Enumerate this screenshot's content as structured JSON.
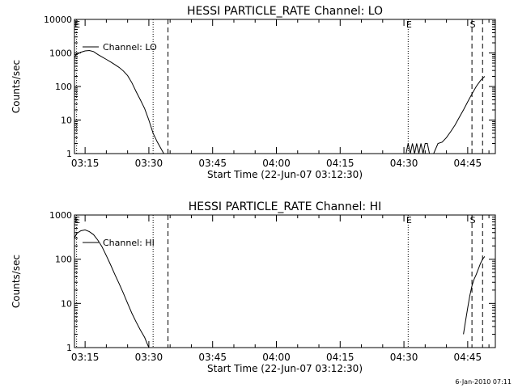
{
  "footer_stamp": "6-Jan-2010 07:11",
  "chart_data": [
    {
      "type": "line",
      "title": "HESSI PARTICLE_RATE Channel: LO",
      "xlabel": "Start Time (22-Jun-07 03:12:30)",
      "ylabel": "Counts/sec",
      "y_scale": "log",
      "ylim": [
        1,
        10000
      ],
      "y_ticks": [
        {
          "v": 1,
          "label": "1"
        },
        {
          "v": 10,
          "label": "10"
        },
        {
          "v": 100,
          "label": "100"
        },
        {
          "v": 1000,
          "label": "1000"
        },
        {
          "v": 10000,
          "label": "10000"
        }
      ],
      "xlim": [
        "03:12:30",
        "04:51:30"
      ],
      "x_ticks": [
        "03:15",
        "03:30",
        "03:45",
        "04:00",
        "04:15",
        "04:30",
        "04:45"
      ],
      "grid": false,
      "legend": {
        "entries": [
          "Channel: LO"
        ],
        "placement": "top-left"
      },
      "markers": [
        {
          "time": "03:13:00",
          "style": "dotted",
          "label": "E"
        },
        {
          "time": "03:31:00",
          "style": "dotted",
          "label": ""
        },
        {
          "time": "03:34:30",
          "style": "dashed",
          "label": ""
        },
        {
          "time": "04:31:00",
          "style": "dotted",
          "label": "E"
        },
        {
          "time": "04:46:00",
          "style": "dashed",
          "label": "S"
        },
        {
          "time": "04:48:30",
          "style": "dashed",
          "label": ""
        }
      ],
      "series": [
        {
          "name": "Channel: LO",
          "segments": [
            [
              [
                "03:12:30",
                750
              ],
              [
                "03:13:00",
                900
              ],
              [
                "03:14:00",
                1050
              ],
              [
                "03:15:00",
                1150
              ],
              [
                "03:16:00",
                1180
              ],
              [
                "03:17:00",
                1100
              ],
              [
                "03:18:00",
                900
              ],
              [
                "03:19:00",
                760
              ],
              [
                "03:20:00",
                640
              ],
              [
                "03:21:00",
                540
              ],
              [
                "03:22:00",
                450
              ],
              [
                "03:23:00",
                370
              ],
              [
                "03:24:00",
                290
              ],
              [
                "03:25:00",
                210
              ],
              [
                "03:26:00",
                130
              ],
              [
                "03:27:00",
                70
              ],
              [
                "03:28:00",
                40
              ],
              [
                "03:29:00",
                22
              ],
              [
                "03:30:00",
                10
              ],
              [
                "03:31:00",
                4
              ],
              [
                "03:32:00",
                2.2
              ],
              [
                "03:33:00",
                1.3
              ],
              [
                "03:33:30",
                1
              ]
            ],
            [
              [
                "04:30:30",
                1
              ],
              [
                "04:31:00",
                2
              ],
              [
                "04:31:30",
                1
              ],
              [
                "04:32:00",
                2
              ],
              [
                "04:32:30",
                1
              ],
              [
                "04:33:00",
                2
              ],
              [
                "04:33:30",
                1
              ],
              [
                "04:34:00",
                2
              ],
              [
                "04:34:30",
                1
              ],
              [
                "04:35:00",
                2
              ],
              [
                "04:35:30",
                2
              ],
              [
                "04:36:00",
                1
              ]
            ],
            [
              [
                "04:37:00",
                1
              ],
              [
                "04:38:00",
                2
              ],
              [
                "04:39:00",
                2.2
              ],
              [
                "04:40:00",
                3
              ],
              [
                "04:41:00",
                4.5
              ],
              [
                "04:42:00",
                7
              ],
              [
                "04:43:00",
                12
              ],
              [
                "04:44:00",
                20
              ],
              [
                "04:45:00",
                35
              ],
              [
                "04:46:00",
                60
              ],
              [
                "04:47:00",
                100
              ],
              [
                "04:48:00",
                150
              ],
              [
                "04:49:00",
                200
              ]
            ]
          ]
        }
      ]
    },
    {
      "type": "line",
      "title": "HESSI PARTICLE_RATE Channel: HI",
      "xlabel": "Start Time (22-Jun-07 03:12:30)",
      "ylabel": "Counts/sec",
      "y_scale": "log",
      "ylim": [
        1,
        1000
      ],
      "y_ticks": [
        {
          "v": 1,
          "label": "1"
        },
        {
          "v": 10,
          "label": "10"
        },
        {
          "v": 100,
          "label": "100"
        },
        {
          "v": 1000,
          "label": "1000"
        }
      ],
      "xlim": [
        "03:12:30",
        "04:51:30"
      ],
      "x_ticks": [
        "03:15",
        "03:30",
        "03:45",
        "04:00",
        "04:15",
        "04:30",
        "04:45"
      ],
      "grid": false,
      "legend": {
        "entries": [
          "Channel: HI"
        ],
        "placement": "top-left"
      },
      "markers": [
        {
          "time": "03:13:00",
          "style": "dotted",
          "label": "E"
        },
        {
          "time": "03:31:00",
          "style": "dotted",
          "label": ""
        },
        {
          "time": "03:34:30",
          "style": "dashed",
          "label": ""
        },
        {
          "time": "04:31:00",
          "style": "dotted",
          "label": "E"
        },
        {
          "time": "04:46:00",
          "style": "dashed",
          "label": "S"
        },
        {
          "time": "04:48:30",
          "style": "dashed",
          "label": ""
        }
      ],
      "series": [
        {
          "name": "Channel: HI",
          "segments": [
            [
              [
                "03:12:30",
                300
              ],
              [
                "03:13:00",
                380
              ],
              [
                "03:14:00",
                440
              ],
              [
                "03:15:00",
                460
              ],
              [
                "03:16:00",
                420
              ],
              [
                "03:17:00",
                360
              ],
              [
                "03:18:00",
                270
              ],
              [
                "03:19:00",
                190
              ],
              [
                "03:20:00",
                120
              ],
              [
                "03:21:00",
                75
              ],
              [
                "03:22:00",
                45
              ],
              [
                "03:23:00",
                28
              ],
              [
                "03:24:00",
                17
              ],
              [
                "03:25:00",
                10
              ],
              [
                "03:26:00",
                6
              ],
              [
                "03:27:00",
                3.8
              ],
              [
                "03:28:00",
                2.5
              ],
              [
                "03:29:00",
                1.7
              ],
              [
                "03:29:30",
                1.3
              ],
              [
                "03:30:00",
                1
              ]
            ],
            [
              [
                "04:44:00",
                2
              ],
              [
                "04:44:30",
                4
              ],
              [
                "04:45:00",
                8
              ],
              [
                "04:45:30",
                15
              ],
              [
                "04:46:00",
                25
              ],
              [
                "04:46:30",
                35
              ],
              [
                "04:47:00",
                45
              ],
              [
                "04:47:30",
                60
              ],
              [
                "04:48:00",
                80
              ],
              [
                "04:48:30",
                100
              ],
              [
                "04:49:00",
                115
              ]
            ]
          ]
        }
      ]
    }
  ]
}
